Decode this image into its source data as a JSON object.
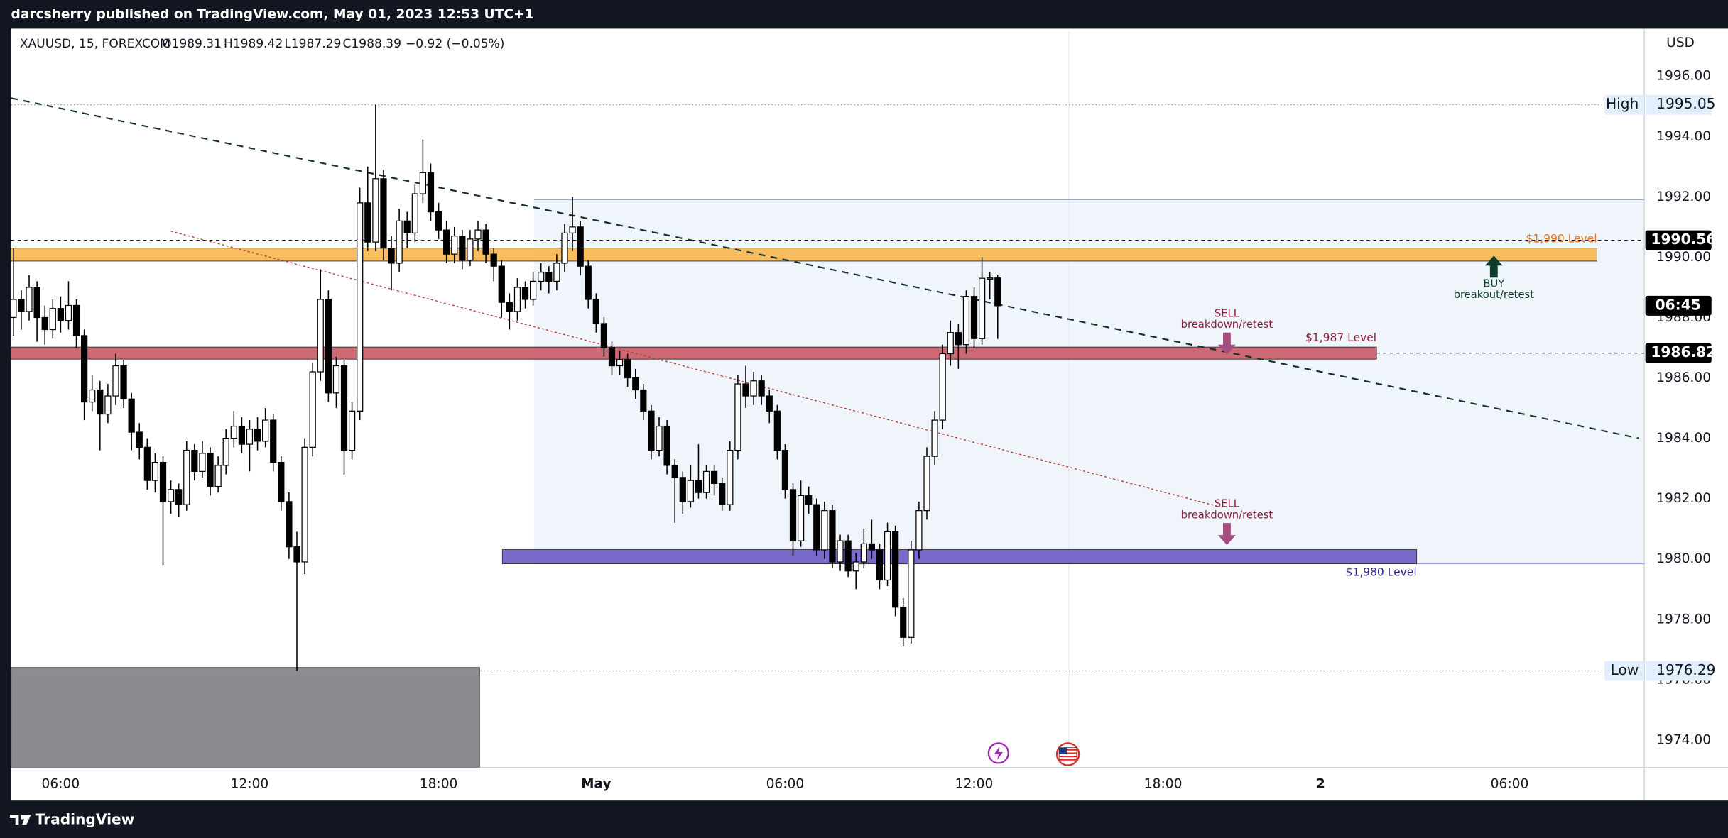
{
  "header": {
    "publisher": "darcsherry published on TradingView.com, May 01, 2023 12:53 UTC+1"
  },
  "footer": {
    "brand": "TradingView"
  },
  "chart_data": {
    "type": "candlestick",
    "symbol": "XAUUSD, 15, FOREXCOM",
    "ohlc_legend": {
      "open": "O1989.31",
      "high": "H1989.42",
      "low": "L1987.29",
      "close": "C1988.39",
      "change": "−0.92 (−0.05%)"
    },
    "currency": "USD",
    "up_color": "#ffffff",
    "down_color": "#000000",
    "outline_color": "#000000",
    "candles": [
      [
        1988.0,
        1990.3,
        1987.4,
        1988.6
      ],
      [
        1988.6,
        1988.9,
        1987.6,
        1988.2
      ],
      [
        1988.2,
        1989.4,
        1987.9,
        1989.0
      ],
      [
        1989.0,
        1989.2,
        1987.2,
        1988.0
      ],
      [
        1988.0,
        1988.4,
        1987.1,
        1987.6
      ],
      [
        1987.6,
        1988.6,
        1987.3,
        1988.3
      ],
      [
        1988.3,
        1988.7,
        1987.5,
        1987.9
      ],
      [
        1987.9,
        1989.2,
        1987.6,
        1988.4
      ],
      [
        1988.4,
        1988.6,
        1987.0,
        1987.4
      ],
      [
        1987.4,
        1987.6,
        1984.6,
        1985.2
      ],
      [
        1985.2,
        1986.1,
        1984.9,
        1985.6
      ],
      [
        1985.6,
        1985.9,
        1983.6,
        1984.8
      ],
      [
        1984.8,
        1985.8,
        1984.5,
        1985.4
      ],
      [
        1985.4,
        1986.8,
        1985.1,
        1986.4
      ],
      [
        1986.4,
        1986.6,
        1985.0,
        1985.3
      ],
      [
        1985.3,
        1985.5,
        1983.6,
        1984.2
      ],
      [
        1984.2,
        1984.5,
        1983.3,
        1983.7
      ],
      [
        1983.7,
        1984.0,
        1982.3,
        1982.6
      ],
      [
        1982.6,
        1983.5,
        1982.2,
        1983.2
      ],
      [
        1983.2,
        1983.4,
        1979.8,
        1981.9
      ],
      [
        1981.9,
        1982.6,
        1981.5,
        1982.3
      ],
      [
        1982.3,
        1982.5,
        1981.4,
        1981.8
      ],
      [
        1981.8,
        1983.9,
        1981.6,
        1983.6
      ],
      [
        1983.6,
        1983.8,
        1982.6,
        1982.9
      ],
      [
        1982.9,
        1983.9,
        1982.7,
        1983.5
      ],
      [
        1983.5,
        1983.7,
        1982.1,
        1982.4
      ],
      [
        1982.4,
        1983.4,
        1982.2,
        1983.1
      ],
      [
        1983.1,
        1984.3,
        1982.8,
        1984.0
      ],
      [
        1984.0,
        1984.9,
        1983.7,
        1984.4
      ],
      [
        1984.4,
        1984.7,
        1983.5,
        1983.8
      ],
      [
        1983.8,
        1984.6,
        1982.9,
        1984.3
      ],
      [
        1984.3,
        1984.7,
        1983.6,
        1983.9
      ],
      [
        1983.9,
        1985.0,
        1983.7,
        1984.6
      ],
      [
        1984.6,
        1984.8,
        1982.9,
        1983.2
      ],
      [
        1983.2,
        1983.4,
        1981.6,
        1981.9
      ],
      [
        1981.9,
        1982.2,
        1980.0,
        1980.4
      ],
      [
        1980.4,
        1980.9,
        1976.29,
        1979.9
      ],
      [
        1979.9,
        1984.0,
        1979.5,
        1983.7
      ],
      [
        1983.7,
        1986.5,
        1983.4,
        1986.2
      ],
      [
        1986.2,
        1989.6,
        1985.9,
        1988.6
      ],
      [
        1988.6,
        1988.9,
        1985.2,
        1985.5
      ],
      [
        1985.5,
        1986.7,
        1985.0,
        1986.4
      ],
      [
        1986.4,
        1986.6,
        1982.8,
        1983.6
      ],
      [
        1983.6,
        1985.2,
        1983.3,
        1984.9
      ],
      [
        1984.9,
        1992.3,
        1984.6,
        1991.8
      ],
      [
        1991.8,
        1993.0,
        1990.2,
        1990.5
      ],
      [
        1990.5,
        1995.05,
        1990.2,
        1992.6
      ],
      [
        1992.6,
        1992.9,
        1989.9,
        1990.3
      ],
      [
        1990.3,
        1990.7,
        1988.9,
        1989.8
      ],
      [
        1989.8,
        1991.6,
        1989.5,
        1991.2
      ],
      [
        1991.2,
        1991.5,
        1990.3,
        1990.8
      ],
      [
        1990.8,
        1992.4,
        1990.5,
        1992.1
      ],
      [
        1992.1,
        1993.9,
        1991.8,
        1992.8
      ],
      [
        1992.8,
        1993.1,
        1991.2,
        1991.5
      ],
      [
        1991.5,
        1991.8,
        1990.6,
        1990.9
      ],
      [
        1990.9,
        1991.2,
        1989.8,
        1990.1
      ],
      [
        1990.1,
        1991.0,
        1989.8,
        1990.7
      ],
      [
        1990.7,
        1990.9,
        1989.6,
        1989.9
      ],
      [
        1989.9,
        1990.9,
        1989.7,
        1990.6
      ],
      [
        1990.6,
        1991.2,
        1990.2,
        1990.9
      ],
      [
        1990.9,
        1991.1,
        1989.8,
        1990.1
      ],
      [
        1990.1,
        1990.3,
        1989.2,
        1989.7
      ],
      [
        1989.7,
        1989.9,
        1988.0,
        1988.5
      ],
      [
        1988.5,
        1988.8,
        1987.6,
        1988.2
      ],
      [
        1988.2,
        1989.3,
        1987.9,
        1989.0
      ],
      [
        1989.0,
        1989.2,
        1988.3,
        1988.6
      ],
      [
        1988.6,
        1989.5,
        1988.4,
        1989.2
      ],
      [
        1989.2,
        1989.8,
        1988.9,
        1989.5
      ],
      [
        1989.5,
        1989.7,
        1988.8,
        1989.2
      ],
      [
        1989.2,
        1990.1,
        1988.9,
        1989.8
      ],
      [
        1989.8,
        1991.1,
        1989.5,
        1990.8
      ],
      [
        1990.8,
        1992.0,
        1990.2,
        1991.0
      ],
      [
        1991.0,
        1991.2,
        1989.4,
        1989.7
      ],
      [
        1989.7,
        1989.9,
        1988.3,
        1988.6
      ],
      [
        1988.6,
        1988.8,
        1987.5,
        1987.8
      ],
      [
        1987.8,
        1988.0,
        1986.7,
        1987.0
      ],
      [
        1987.0,
        1987.2,
        1986.1,
        1986.4
      ],
      [
        1986.4,
        1986.9,
        1986.1,
        1986.6
      ],
      [
        1986.6,
        1986.8,
        1985.7,
        1986.0
      ],
      [
        1986.0,
        1986.3,
        1985.3,
        1985.6
      ],
      [
        1985.6,
        1985.8,
        1984.6,
        1984.9
      ],
      [
        1984.9,
        1985.1,
        1983.3,
        1983.6
      ],
      [
        1983.6,
        1984.7,
        1983.4,
        1984.4
      ],
      [
        1984.4,
        1984.6,
        1982.8,
        1983.1
      ],
      [
        1983.1,
        1983.3,
        1981.2,
        1982.7
      ],
      [
        1982.7,
        1982.9,
        1981.5,
        1981.9
      ],
      [
        1981.9,
        1983.1,
        1981.7,
        1982.6
      ],
      [
        1982.6,
        1983.8,
        1982.0,
        1982.2
      ],
      [
        1982.2,
        1983.1,
        1982.0,
        1982.9
      ],
      [
        1982.9,
        1983.1,
        1982.1,
        1982.5
      ],
      [
        1982.5,
        1982.7,
        1981.6,
        1981.8
      ],
      [
        1981.8,
        1983.9,
        1981.6,
        1983.6
      ],
      [
        1983.6,
        1986.1,
        1983.3,
        1985.8
      ],
      [
        1985.8,
        1986.4,
        1985.0,
        1985.4
      ],
      [
        1985.4,
        1986.2,
        1985.1,
        1985.9
      ],
      [
        1985.9,
        1986.1,
        1985.1,
        1985.4
      ],
      [
        1985.4,
        1985.6,
        1984.5,
        1984.9
      ],
      [
        1984.9,
        1985.1,
        1983.3,
        1983.6
      ],
      [
        1983.6,
        1983.8,
        1982.0,
        1982.3
      ],
      [
        1982.3,
        1982.5,
        1980.1,
        1980.6
      ],
      [
        1980.6,
        1982.6,
        1980.4,
        1982.1
      ],
      [
        1982.1,
        1982.4,
        1981.5,
        1981.8
      ],
      [
        1981.8,
        1982.0,
        1980.1,
        1980.3
      ],
      [
        1980.3,
        1981.9,
        1980.0,
        1981.6
      ],
      [
        1981.6,
        1981.8,
        1979.7,
        1979.9
      ],
      [
        1979.9,
        1980.8,
        1979.6,
        1980.6
      ],
      [
        1980.6,
        1980.8,
        1979.4,
        1979.6
      ],
      [
        1979.6,
        1980.2,
        1979.0,
        1979.9
      ],
      [
        1979.9,
        1981.0,
        1979.7,
        1980.5
      ],
      [
        1980.5,
        1981.3,
        1980.0,
        1980.3
      ],
      [
        1980.3,
        1980.5,
        1979.0,
        1979.3
      ],
      [
        1979.3,
        1981.2,
        1979.1,
        1980.9
      ],
      [
        1980.9,
        1981.1,
        1978.1,
        1978.4
      ],
      [
        1978.4,
        1978.7,
        1977.1,
        1977.4
      ],
      [
        1977.4,
        1980.6,
        1977.2,
        1980.3
      ],
      [
        1980.3,
        1981.9,
        1980.0,
        1981.6
      ],
      [
        1981.6,
        1983.7,
        1981.3,
        1983.4
      ],
      [
        1983.4,
        1984.9,
        1983.1,
        1984.6
      ],
      [
        1984.6,
        1987.1,
        1984.3,
        1986.8
      ],
      [
        1986.8,
        1987.9,
        1986.4,
        1987.5
      ],
      [
        1987.5,
        1987.8,
        1986.3,
        1987.1
      ],
      [
        1987.1,
        1988.9,
        1986.8,
        1988.7
      ],
      [
        1988.7,
        1989.0,
        1987.0,
        1987.3
      ],
      [
        1987.3,
        1990.0,
        1987.1,
        1989.3
      ],
      [
        1989.3,
        1989.5,
        1988.6,
        1989.31
      ],
      [
        1989.31,
        1989.42,
        1987.29,
        1988.39
      ]
    ],
    "xlim": [
      -0.3,
      207.1
    ],
    "xticks": [
      {
        "value": 6,
        "label": "06:00"
      },
      {
        "value": 30,
        "label": "12:00"
      },
      {
        "value": 54,
        "label": "18:00"
      },
      {
        "value": 74,
        "label": "May"
      },
      {
        "value": 98,
        "label": "06:00"
      },
      {
        "value": 122,
        "label": "12:00"
      },
      {
        "value": 146,
        "label": "18:00"
      },
      {
        "value": 166,
        "label": "2"
      },
      {
        "value": 190,
        "label": "06:00"
      }
    ],
    "ylim": [
      1973.09,
      1997.57
    ],
    "yticks": [
      {
        "value": 1974,
        "label": "1974.00"
      },
      {
        "value": 1976,
        "label": "1976.00"
      },
      {
        "value": 1978,
        "label": "1978.00"
      },
      {
        "value": 1980,
        "label": "1980.00"
      },
      {
        "value": 1982,
        "label": "1982.00"
      },
      {
        "value": 1984,
        "label": "1984.00"
      },
      {
        "value": 1986,
        "label": "1986.00"
      },
      {
        "value": 1988,
        "label": "1988.00"
      },
      {
        "value": 1990,
        "label": "1990.00"
      },
      {
        "value": 1992,
        "label": "1992.00"
      },
      {
        "value": 1994,
        "label": "1994.00"
      },
      {
        "value": 1996,
        "label": "1996.00"
      }
    ],
    "grid": false,
    "price_labels": [
      {
        "name": "High",
        "value": 1995.05
      },
      {
        "name": "Low",
        "value": 1976.29
      }
    ],
    "price_lines": [
      {
        "value": 1990.56,
        "from": -0.3
      },
      {
        "value": 1986.82,
        "from": 173.1
      }
    ],
    "countdown": "06:45",
    "range_box": {
      "low": 1979.84,
      "high": 1991.91,
      "start": 66.1,
      "color": "#dbe8f7"
    },
    "gray_box": {
      "low": 1973.09,
      "high": 1976.4,
      "start": -0.3,
      "end": 59.2,
      "color": "#8a8c92"
    },
    "zones": [
      {
        "label": "$1,990 Level",
        "low": 1989.87,
        "high": 1990.3,
        "start": -0.3,
        "end": 201.1,
        "color": "#f9b64e",
        "label_color": "#e8732a",
        "label_side": "above"
      },
      {
        "label": "$1,987 Level",
        "low": 1986.62,
        "high": 1987.02,
        "start": -0.3,
        "end": 173.1,
        "color": "#c75b65",
        "label_color": "#8b1f3a",
        "label_side": "above"
      },
      {
        "label": "$1,980 Level",
        "low": 1979.84,
        "high": 1980.31,
        "start": 62.1,
        "end": 178.2,
        "color": "#6b5bc5",
        "label_color": "#2d2a86",
        "label_side": "below"
      }
    ],
    "trendlines": [
      {
        "start": [
          -0.28,
          1995.27
        ],
        "end": [
          206.4,
          1984.0
        ],
        "color": "#16332b",
        "style": "dashed"
      },
      {
        "start": [
          20.0,
          1990.86
        ],
        "end": [
          153.0,
          1981.74
        ],
        "color": "#b5413d",
        "style": "dotted"
      }
    ],
    "signals": [
      {
        "title": "BUY",
        "text": "breakout/retest",
        "index": 188,
        "price": 1990.05,
        "direction": "up",
        "color": "#0d3b2c"
      },
      {
        "title": "SELL",
        "text": "breakdown/retest",
        "index": 154.1,
        "price": 1986.77,
        "direction": "down",
        "color": "#a64d80"
      },
      {
        "title": "SELL",
        "text": "breakdown/retest",
        "index": 154.1,
        "price": 1980.46,
        "direction": "down",
        "color": "#a64d80"
      }
    ]
  }
}
